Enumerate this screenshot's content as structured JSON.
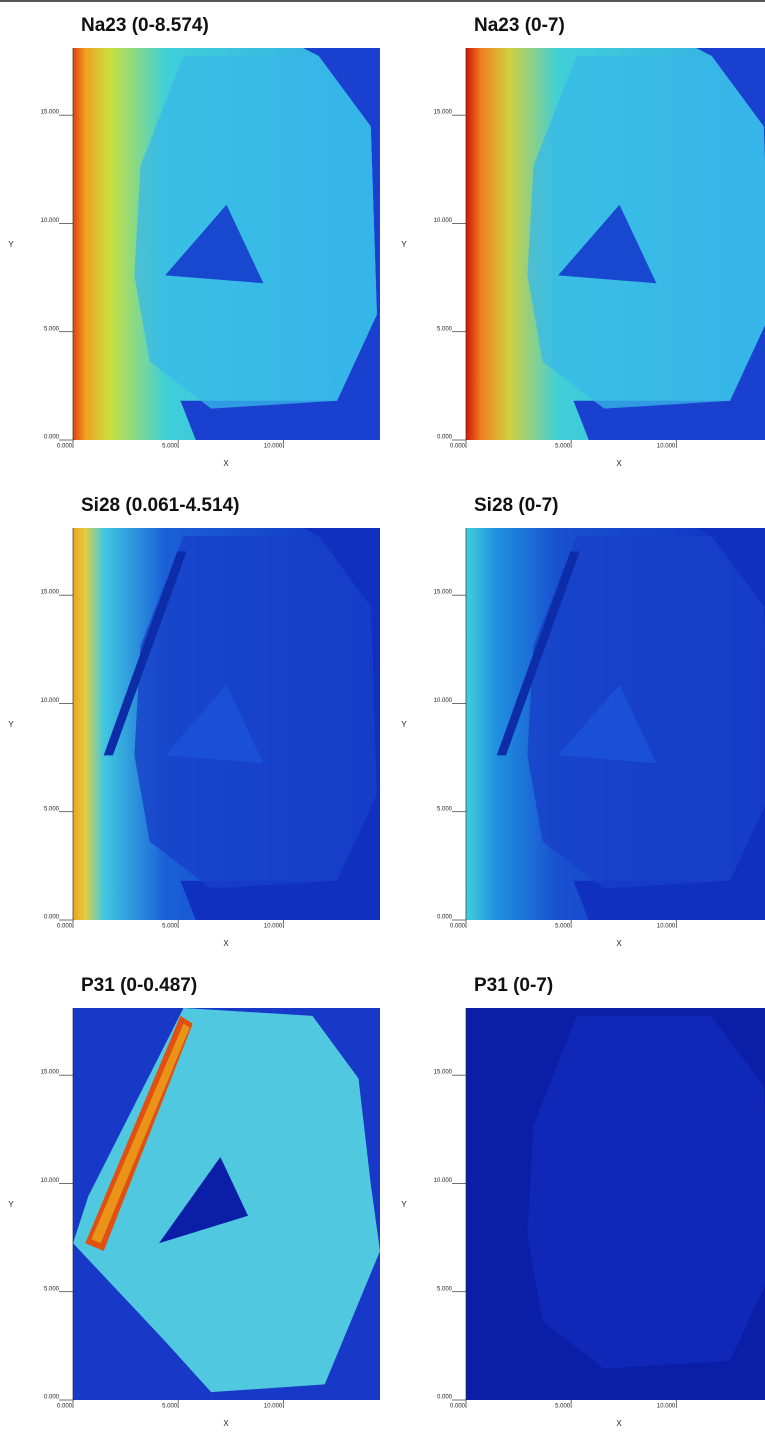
{
  "panels": [
    {
      "title": "Na23 (0-8.574)",
      "xlabel": "X",
      "ylabel": "Y",
      "xlim": [
        0,
        14.6
      ],
      "ylim": [
        0,
        18.1
      ],
      "xticks": [
        {
          "value": 0,
          "label": "0.000"
        },
        {
          "value": 5,
          "label": "5.000"
        },
        {
          "value": 10,
          "label": "10.000"
        }
      ],
      "yticks": [
        {
          "value": 0,
          "label": "0.000"
        },
        {
          "value": 5,
          "label": "5.000"
        },
        {
          "value": 10,
          "label": "10.000"
        },
        {
          "value": 15,
          "label": "15.000"
        }
      ]
    },
    {
      "title": "Na23 (0-7)",
      "xlabel": "X",
      "ylabel": "Y",
      "xlim": [
        0,
        14.6
      ],
      "ylim": [
        0,
        18.1
      ],
      "xticks": [
        {
          "value": 0,
          "label": "0.000"
        },
        {
          "value": 5,
          "label": "5.000"
        },
        {
          "value": 10,
          "label": "10.000"
        }
      ],
      "yticks": [
        {
          "value": 0,
          "label": "0.000"
        },
        {
          "value": 5,
          "label": "5.000"
        },
        {
          "value": 10,
          "label": "10.000"
        },
        {
          "value": 15,
          "label": "15.000"
        }
      ]
    },
    {
      "title": "Si28 (0.061-4.514)",
      "xlabel": "X",
      "ylabel": "Y",
      "xlim": [
        0,
        14.6
      ],
      "ylim": [
        0,
        18.1
      ],
      "xticks": [
        {
          "value": 0,
          "label": "0.000"
        },
        {
          "value": 5,
          "label": "5.000"
        },
        {
          "value": 10,
          "label": "10.000"
        }
      ],
      "yticks": [
        {
          "value": 0,
          "label": "0.000"
        },
        {
          "value": 5,
          "label": "5.000"
        },
        {
          "value": 10,
          "label": "10.000"
        },
        {
          "value": 15,
          "label": "15.000"
        }
      ]
    },
    {
      "title": "Si28 (0-7)",
      "xlabel": "X",
      "ylabel": "Y",
      "xlim": [
        0,
        14.6
      ],
      "ylim": [
        0,
        18.1
      ],
      "xticks": [
        {
          "value": 0,
          "label": "0.000"
        },
        {
          "value": 5,
          "label": "5.000"
        },
        {
          "value": 10,
          "label": "10.000"
        }
      ],
      "yticks": [
        {
          "value": 0,
          "label": "0.000"
        },
        {
          "value": 5,
          "label": "5.000"
        },
        {
          "value": 10,
          "label": "10.000"
        },
        {
          "value": 15,
          "label": "15.000"
        }
      ]
    },
    {
      "title": "P31 (0-0.487)",
      "xlabel": "X",
      "ylabel": "Y",
      "xlim": [
        0,
        14.6
      ],
      "ylim": [
        0,
        18.1
      ],
      "xticks": [
        {
          "value": 0,
          "label": "0.000"
        },
        {
          "value": 5,
          "label": "5.000"
        },
        {
          "value": 10,
          "label": "10.000"
        }
      ],
      "yticks": [
        {
          "value": 0,
          "label": "0.000"
        },
        {
          "value": 5,
          "label": "5.000"
        },
        {
          "value": 10,
          "label": "10.000"
        },
        {
          "value": 15,
          "label": "15.000"
        }
      ]
    },
    {
      "title": "P31 (0-7)",
      "xlabel": "X",
      "ylabel": "Y",
      "xlim": [
        0,
        14.6
      ],
      "ylim": [
        0,
        18.1
      ],
      "xticks": [
        {
          "value": 0,
          "label": "0.000"
        },
        {
          "value": 5,
          "label": "5.000"
        },
        {
          "value": 10,
          "label": "10.000"
        }
      ],
      "yticks": [
        {
          "value": 0,
          "label": "0.000"
        },
        {
          "value": 5,
          "label": "5.000"
        },
        {
          "value": 10,
          "label": "10.000"
        },
        {
          "value": 15,
          "label": "15.000"
        }
      ]
    }
  ]
}
